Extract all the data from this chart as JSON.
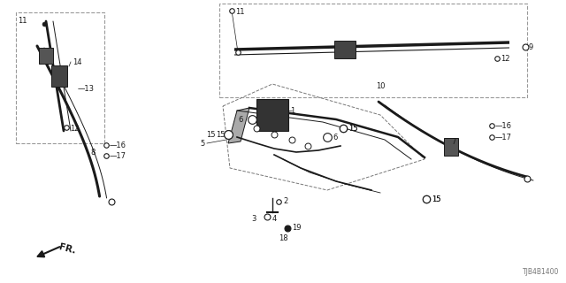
{
  "bg": "#ffffff",
  "lc": "#1a1a1a",
  "diagram_code": "TJB4B1400",
  "fs": 6.0
}
